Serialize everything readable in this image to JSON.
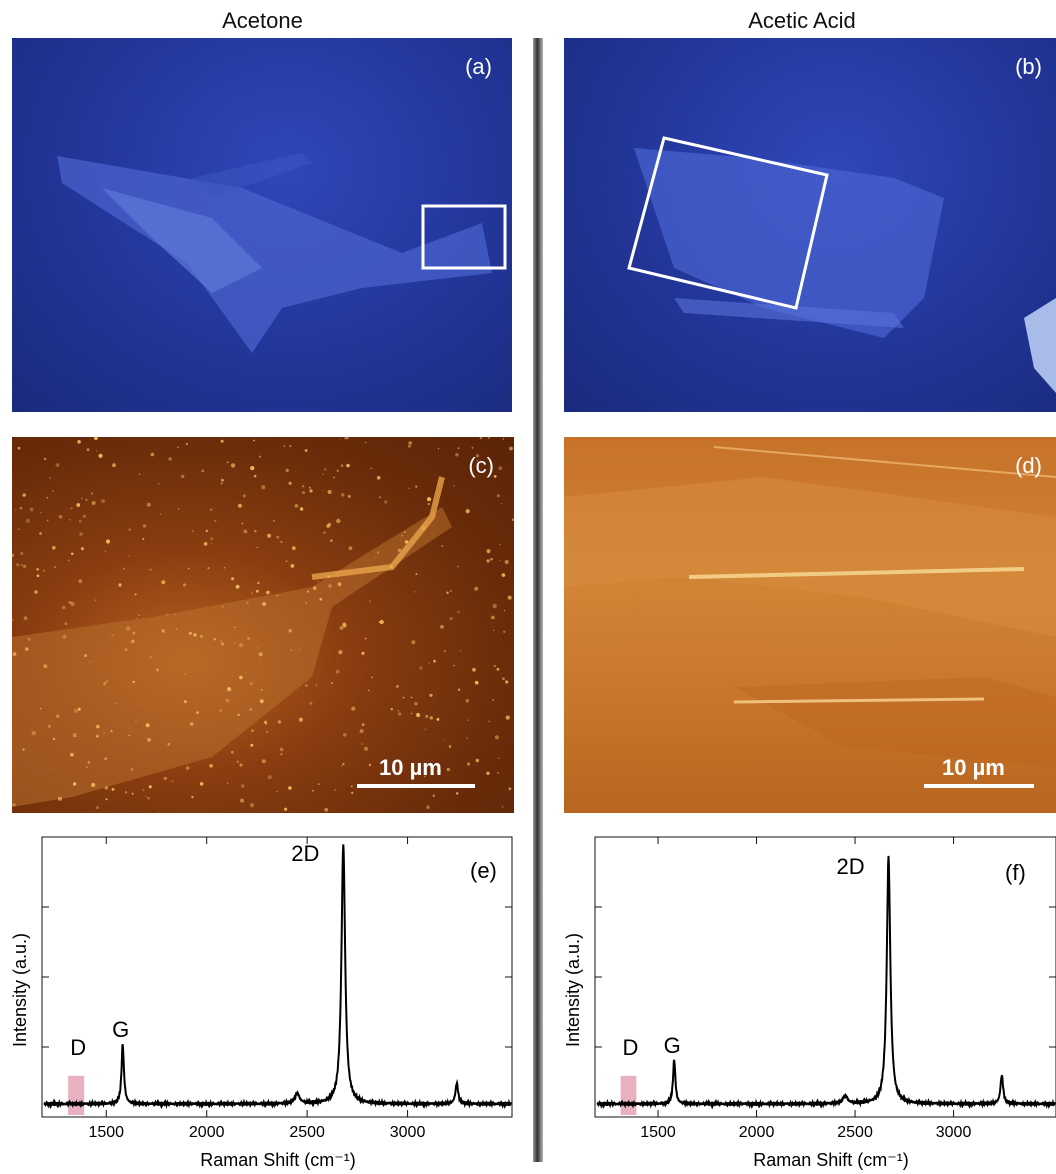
{
  "columns": {
    "left_title": "Acetone",
    "right_title": "Acetic Acid"
  },
  "panels": {
    "a": "(a)",
    "b": "(b)",
    "c": "(c)",
    "d": "(d)",
    "e": "(e)",
    "f": "(f)"
  },
  "scale_bar": {
    "left": "10 µm",
    "right": "10 µm"
  },
  "chart_data": [
    {
      "type": "line",
      "panel": "(e)",
      "xlabel": "Raman Shift (cm⁻¹)",
      "ylabel": "Intensity (a.u.)",
      "xlim": [
        1180,
        3520
      ],
      "ylim": [
        0,
        1.0
      ],
      "xticks": [
        1500,
        2000,
        2500,
        3000
      ],
      "peak_labels": [
        "D",
        "G",
        "2D"
      ],
      "peaks": [
        {
          "x": 1582,
          "height": 0.23,
          "width": 7
        },
        {
          "x": 2450,
          "height": 0.04,
          "width": 14
        },
        {
          "x": 2680,
          "height": 1.0,
          "width": 11
        },
        {
          "x": 3245,
          "height": 0.08,
          "width": 8
        }
      ],
      "d_band_region": [
        1310,
        1390
      ]
    },
    {
      "type": "line",
      "panel": "(f)",
      "xlabel": "Raman Shift (cm⁻¹)",
      "ylabel": "Intensity (a.u.)",
      "xlim": [
        1180,
        3520
      ],
      "ylim": [
        0,
        1.0
      ],
      "xticks": [
        1500,
        2000,
        2500,
        3000
      ],
      "peak_labels": [
        "D",
        "G",
        "2D"
      ],
      "peaks": [
        {
          "x": 1582,
          "height": 0.17,
          "width": 7
        },
        {
          "x": 2450,
          "height": 0.03,
          "width": 14
        },
        {
          "x": 2670,
          "height": 0.95,
          "width": 11
        },
        {
          "x": 3245,
          "height": 0.11,
          "width": 8
        }
      ],
      "d_band_region": [
        1310,
        1390
      ]
    }
  ]
}
